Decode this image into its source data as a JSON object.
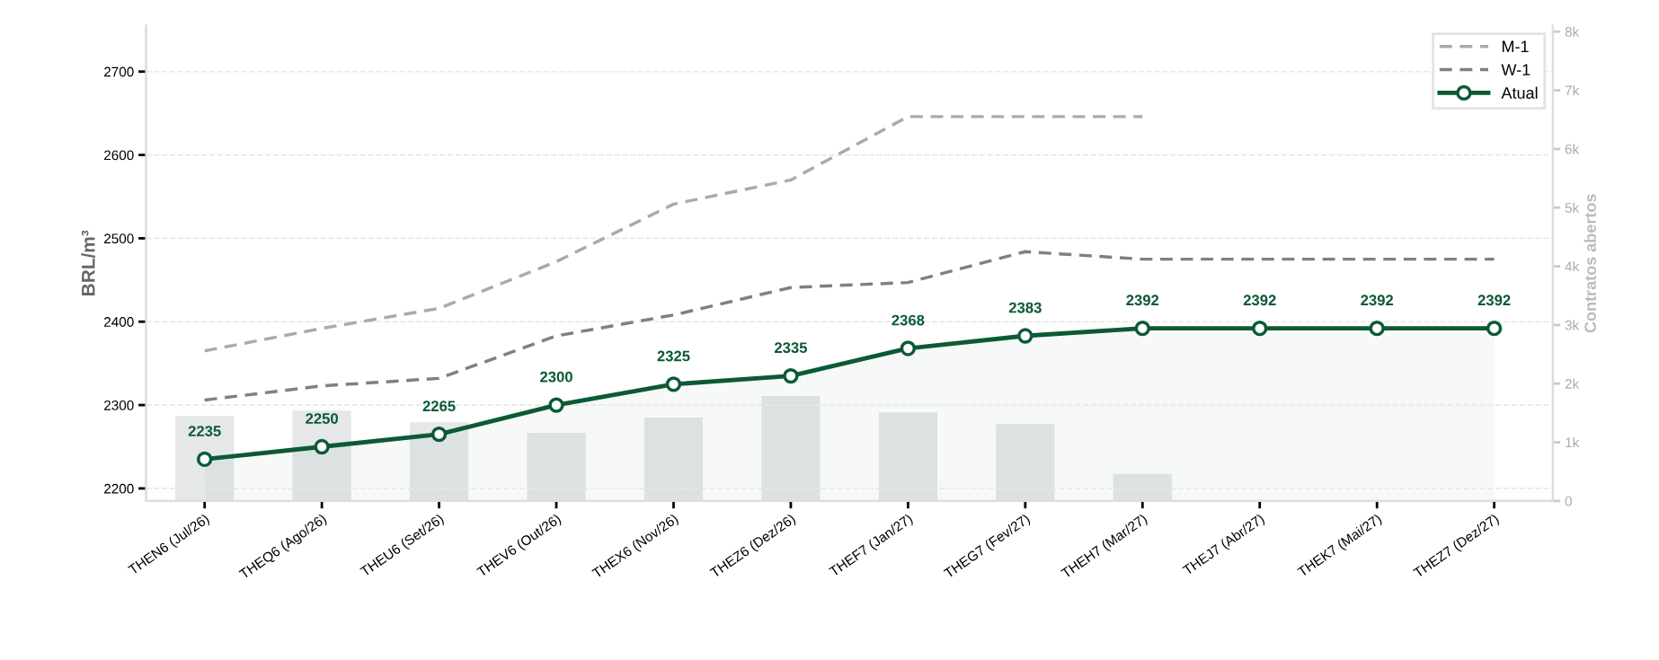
{
  "chart_data": {
    "type": "line",
    "categories": [
      "THEN6 (Jul/26)",
      "THEQ6 (Ago/26)",
      "THEU6 (Set/26)",
      "THEV6 (Out/26)",
      "THEX6 (Nov/26)",
      "THEZ6 (Dez/26)",
      "THEF7 (Jan/27)",
      "THEG7 (Fev/27)",
      "THEH7 (Mar/27)",
      "THEJ7 (Abr/27)",
      "THEK7 (Mai/27)",
      "THEZ7 (Dez/27)"
    ],
    "ylabel": "BRL/m³",
    "y2label": "Contratos abertos",
    "ylim": [
      2185,
      2755
    ],
    "yticks": [
      2200,
      2300,
      2400,
      2500,
      2600,
      2700
    ],
    "y2lim": [
      0,
      8100
    ],
    "y2ticks": [
      0,
      {
        "value": 1000,
        "label": "1k"
      },
      {
        "value": 2000,
        "label": "2k"
      },
      {
        "value": 3000,
        "label": "3k"
      },
      {
        "value": 4000,
        "label": "4k"
      },
      {
        "value": 5000,
        "label": "5k"
      },
      {
        "value": 6000,
        "label": "6k"
      },
      {
        "value": 7000,
        "label": "7k"
      },
      {
        "value": 8000,
        "label": "8k"
      }
    ],
    "grid": "y",
    "legend": "top right",
    "series": [
      {
        "type": "bar",
        "axis": "y2",
        "color": "#e5e7e8",
        "values": [
          1450,
          1540,
          1340,
          1160,
          1420,
          1790,
          1510,
          1310,
          460,
          null,
          null,
          null
        ]
      },
      {
        "name": "M-1",
        "color": "#aaaaaa",
        "line_style": "dashed",
        "marker": "none",
        "values": [
          2365,
          2392,
          2416,
          2472,
          2541,
          2570,
          2646,
          2646,
          2646,
          null,
          null,
          null
        ]
      },
      {
        "name": "W-1",
        "color": "#808080",
        "line_style": "dashed",
        "marker": "none",
        "values": [
          2306,
          2323,
          2332,
          2383,
          2408,
          2441,
          2447,
          2484,
          2475,
          2475,
          2475,
          2475
        ]
      },
      {
        "type": "area",
        "name": "Atual",
        "color": "#0b5a35",
        "line_style": "solid",
        "marker": "circle",
        "values": [
          2235,
          2250,
          2265,
          2300,
          2325,
          2335,
          2368,
          2383,
          2392,
          2392,
          2392,
          2392
        ],
        "value_labels": [
          "2235",
          "2250",
          "2265",
          "2300",
          "2325",
          "2335",
          "2368",
          "2383",
          "2392",
          "2392",
          "2392",
          "2392"
        ]
      }
    ]
  }
}
